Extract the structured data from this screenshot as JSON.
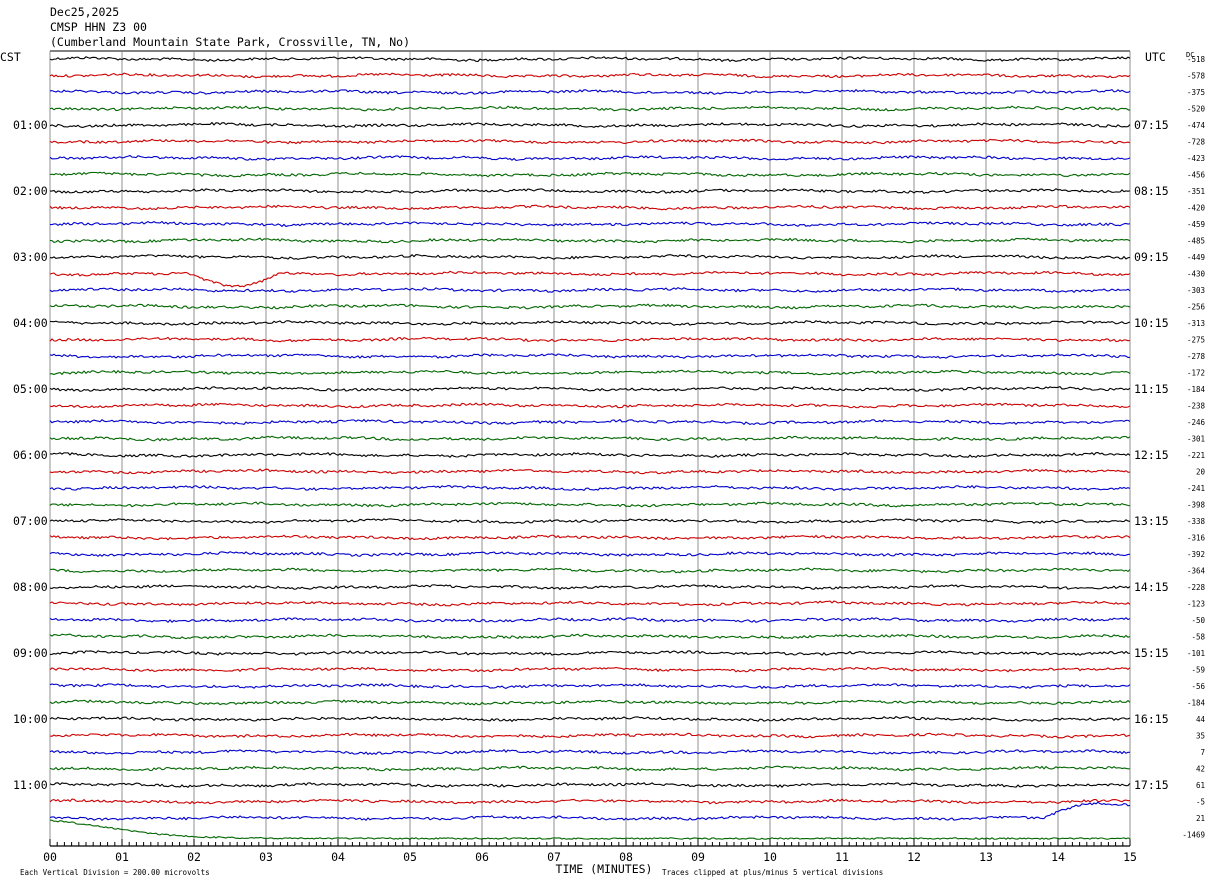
{
  "header": {
    "date": "Dec25,2025",
    "channel": "CMSP HHN Z3 00",
    "location": "(Cumberland Mountain State Park, Crossville, TN, No)"
  },
  "labels": {
    "left_tz": "CST",
    "right_tz": "UTC",
    "dc": "DC",
    "xlabel": "TIME (MINUTES)",
    "scale_note": "Each Vertical Division =  200.00 microvolts",
    "clip_note": "Traces clipped at plus/minus 5 vertical divisions"
  },
  "colors": {
    "cycle": [
      "#000000",
      "#cc0000",
      "#0000cc",
      "#006600"
    ],
    "grid": "#777777",
    "axis": "#000000"
  },
  "chart_data": {
    "type": "line",
    "title": "CMSP HHN Z3 00",
    "xlabel": "TIME (MINUTES)",
    "xlim": [
      0,
      15
    ],
    "x_ticks": [
      "00",
      "01",
      "02",
      "03",
      "04",
      "05",
      "06",
      "07",
      "08",
      "09",
      "10",
      "11",
      "12",
      "13",
      "14",
      "15"
    ],
    "rows_per_hour": 4,
    "row_count": 48,
    "left_hour_labels": [
      "01:00",
      "02:00",
      "03:00",
      "04:00",
      "05:00",
      "06:00",
      "07:00",
      "08:00",
      "09:00",
      "10:00",
      "11:00"
    ],
    "right_hour_labels": [
      "07:15",
      "08:15",
      "09:15",
      "10:15",
      "11:15",
      "12:15",
      "13:15",
      "14:15",
      "15:15",
      "16:15",
      "17:15"
    ],
    "dc_offsets": [
      -518,
      -578,
      -375,
      -520,
      -474,
      -728,
      -423,
      -456,
      -351,
      -420,
      -459,
      -485,
      -449,
      -430,
      -303,
      -256,
      -313,
      -275,
      -278,
      -172,
      -184,
      -238,
      -246,
      -301,
      -221,
      20,
      -241,
      -398,
      -338,
      -316,
      -392,
      -364,
      -228,
      -123,
      -50,
      -58,
      -101,
      -59,
      -56,
      -184,
      44,
      35,
      7,
      42,
      61,
      -5,
      21,
      -1469
    ],
    "vertical_division_microvolts": 200.0,
    "clip_divisions": 5,
    "notable_events": [
      {
        "row": 13,
        "minute_start": 1.9,
        "minute_end": 3.2,
        "shape": "dip"
      },
      {
        "row": 46,
        "minute_start": 13.8,
        "minute_end": 15.0,
        "shape": "rise"
      },
      {
        "row": 47,
        "minute_start": 0.0,
        "minute_end": 2.0,
        "shape": "decay"
      }
    ]
  }
}
